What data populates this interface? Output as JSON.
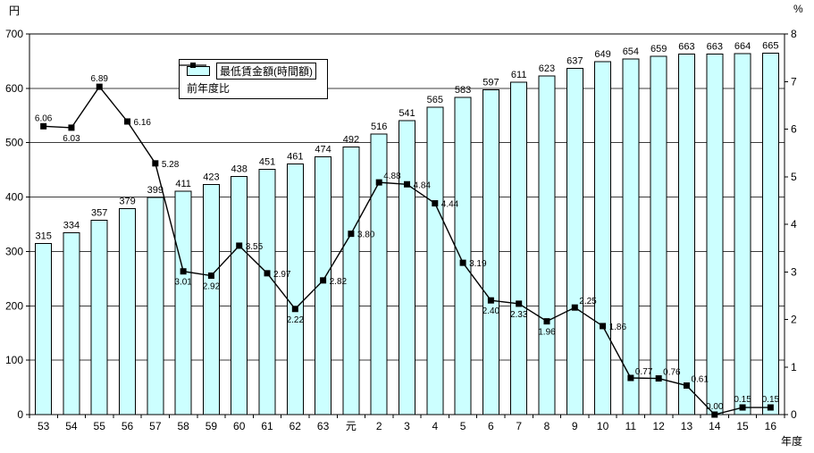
{
  "chart_data": {
    "type": "bar+line",
    "title": "",
    "categories": [
      "53",
      "54",
      "55",
      "56",
      "57",
      "58",
      "59",
      "60",
      "61",
      "62",
      "63",
      "元",
      "2",
      "3",
      "4",
      "5",
      "6",
      "7",
      "8",
      "9",
      "10",
      "11",
      "12",
      "13",
      "14",
      "15",
      "16"
    ],
    "series": [
      {
        "name": "最低賃金額(時間額)",
        "type": "bar",
        "axis": "left",
        "values": [
          315,
          334,
          357,
          379,
          399,
          411,
          423,
          438,
          451,
          461,
          474,
          492,
          516,
          541,
          565,
          583,
          597,
          611,
          623,
          637,
          649,
          654,
          659,
          663,
          663,
          664,
          665
        ]
      },
      {
        "name": "前年度比",
        "type": "line",
        "axis": "right",
        "values": [
          6.06,
          6.03,
          6.89,
          6.16,
          5.28,
          3.01,
          2.92,
          3.55,
          2.97,
          2.22,
          2.82,
          3.8,
          4.88,
          4.84,
          4.44,
          3.19,
          2.4,
          2.33,
          1.96,
          2.25,
          1.86,
          0.77,
          0.76,
          0.61,
          0.0,
          0.15,
          0.15
        ],
        "label_positions": [
          "above",
          "below",
          "above",
          "right",
          "right",
          "below",
          "below",
          "right",
          "right",
          "below",
          "right",
          "right",
          "above-right",
          "right",
          "right",
          "right",
          "below",
          "below",
          "below",
          "above-right",
          "right",
          "above-right",
          "above-right",
          "above-right",
          "above",
          "above",
          "above"
        ]
      }
    ],
    "left_axis": {
      "unit": "円",
      "min": 0,
      "max": 700,
      "step": 100
    },
    "right_axis": {
      "unit": "%",
      "min": 0,
      "max": 8,
      "step": 1
    },
    "x_axis": {
      "unit": "年度"
    },
    "grid": true,
    "legend_position": "inside-top-left",
    "colors": {
      "bar_fill": "#ccffff",
      "bar_border": "#000000",
      "line": "#000000",
      "marker": "#000000",
      "grid": "#3c3c3c",
      "axis": "#000000",
      "text": "#000000",
      "background": "#ffffff"
    }
  }
}
